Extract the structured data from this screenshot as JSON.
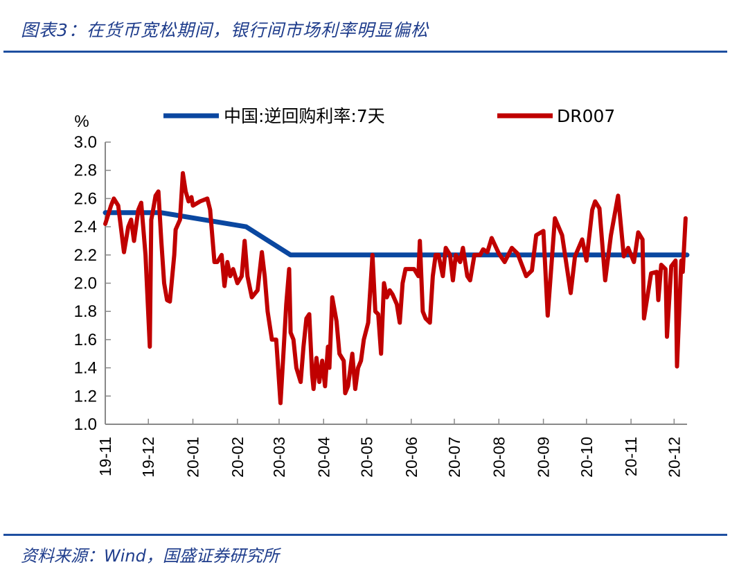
{
  "header": {
    "title": "图表3：在货币宽松期间，银行间市场利率明显偏松"
  },
  "footer": {
    "source": "资料来源：Wind，国盛证券研究所"
  },
  "chart_data": {
    "type": "line",
    "title": "",
    "ylabel": "%",
    "ylim": [
      1.0,
      3.0
    ],
    "yticks": [
      "1.0",
      "1.2",
      "1.4",
      "1.6",
      "1.8",
      "2.0",
      "2.2",
      "2.4",
      "2.6",
      "2.8",
      "3.0"
    ],
    "xlim": [
      "2019-11-01",
      "2020-12-10"
    ],
    "xticks": [
      "19-11",
      "19-12",
      "20-01",
      "20-02",
      "20-03",
      "20-04",
      "20-05",
      "20-06",
      "20-07",
      "20-08",
      "20-09",
      "20-10",
      "20-11",
      "20-12"
    ],
    "grid": false,
    "legend_position": "top",
    "series": [
      {
        "name": "中国:逆回购利率:7天",
        "color": "#0a47a0",
        "points": [
          [
            "2019-11-01",
            2.5
          ],
          [
            "2019-12-10",
            2.5
          ],
          [
            "2020-02-07",
            2.4
          ],
          [
            "2020-03-09",
            2.2
          ],
          [
            "2020-12-10",
            2.2
          ]
        ]
      },
      {
        "name": "DR007",
        "color": "#c00000",
        "points": [
          [
            "2019-11-01",
            2.42
          ],
          [
            "2019-11-05",
            2.55
          ],
          [
            "2019-11-07",
            2.6
          ],
          [
            "2019-11-10",
            2.55
          ],
          [
            "2019-11-14",
            2.22
          ],
          [
            "2019-11-17",
            2.4
          ],
          [
            "2019-11-19",
            2.45
          ],
          [
            "2019-11-21",
            2.3
          ],
          [
            "2019-11-24",
            2.52
          ],
          [
            "2019-11-26",
            2.57
          ],
          [
            "2019-11-29",
            2.2
          ],
          [
            "2019-12-02",
            1.55
          ],
          [
            "2019-12-03",
            2.45
          ],
          [
            "2019-12-04",
            2.5
          ],
          [
            "2019-12-06",
            2.62
          ],
          [
            "2019-12-08",
            2.65
          ],
          [
            "2019-12-10",
            2.3
          ],
          [
            "2019-12-12",
            2.0
          ],
          [
            "2019-12-14",
            1.88
          ],
          [
            "2019-12-16",
            1.87
          ],
          [
            "2019-12-19",
            2.2
          ],
          [
            "2019-12-20",
            2.38
          ],
          [
            "2019-12-23",
            2.45
          ],
          [
            "2019-12-25",
            2.78
          ],
          [
            "2019-12-27",
            2.65
          ],
          [
            "2019-12-29",
            2.58
          ],
          [
            "2019-12-31",
            2.61
          ],
          [
            "2020-01-01",
            2.55
          ],
          [
            "2020-01-06",
            2.58
          ],
          [
            "2020-01-11",
            2.6
          ],
          [
            "2020-01-13",
            2.52
          ],
          [
            "2020-01-16",
            2.15
          ],
          [
            "2020-01-18",
            2.15
          ],
          [
            "2020-01-21",
            2.2
          ],
          [
            "2020-01-23",
            1.98
          ],
          [
            "2020-01-25",
            2.15
          ],
          [
            "2020-01-27",
            2.05
          ],
          [
            "2020-01-29",
            2.1
          ],
          [
            "2020-02-01",
            2.0
          ],
          [
            "2020-02-04",
            2.05
          ],
          [
            "2020-02-06",
            2.3
          ],
          [
            "2020-02-08",
            2.05
          ],
          [
            "2020-02-09",
            2.0
          ],
          [
            "2020-02-11",
            1.9
          ],
          [
            "2020-02-15",
            1.95
          ],
          [
            "2020-02-18",
            2.22
          ],
          [
            "2020-02-20",
            2.05
          ],
          [
            "2020-02-22",
            1.8
          ],
          [
            "2020-02-25",
            1.6
          ],
          [
            "2020-02-28",
            1.6
          ],
          [
            "2020-03-02",
            1.15
          ],
          [
            "2020-03-04",
            1.5
          ],
          [
            "2020-03-06",
            1.85
          ],
          [
            "2020-03-08",
            2.1
          ],
          [
            "2020-03-09",
            1.65
          ],
          [
            "2020-03-11",
            1.6
          ],
          [
            "2020-03-13",
            1.4
          ],
          [
            "2020-03-16",
            1.3
          ],
          [
            "2020-03-18",
            1.55
          ],
          [
            "2020-03-20",
            1.75
          ],
          [
            "2020-03-22",
            1.78
          ],
          [
            "2020-03-24",
            1.35
          ],
          [
            "2020-03-25",
            1.25
          ],
          [
            "2020-03-27",
            1.47
          ],
          [
            "2020-03-29",
            1.3
          ],
          [
            "2020-03-31",
            1.45
          ],
          [
            "2020-04-02",
            1.27
          ],
          [
            "2020-04-04",
            1.55
          ],
          [
            "2020-04-05",
            1.4
          ],
          [
            "2020-04-07",
            1.9
          ],
          [
            "2020-04-10",
            1.73
          ],
          [
            "2020-04-12",
            1.5
          ],
          [
            "2020-04-15",
            1.45
          ],
          [
            "2020-04-16",
            1.22
          ],
          [
            "2020-04-18",
            1.27
          ],
          [
            "2020-04-21",
            1.5
          ],
          [
            "2020-04-23",
            1.25
          ],
          [
            "2020-04-25",
            1.4
          ],
          [
            "2020-04-27",
            1.45
          ],
          [
            "2020-04-29",
            1.6
          ],
          [
            "2020-05-02",
            1.72
          ],
          [
            "2020-05-05",
            2.2
          ],
          [
            "2020-05-07",
            1.8
          ],
          [
            "2020-05-09",
            1.78
          ],
          [
            "2020-05-11",
            1.5
          ],
          [
            "2020-05-13",
            2.0
          ],
          [
            "2020-05-15",
            1.9
          ],
          [
            "2020-05-17",
            1.95
          ],
          [
            "2020-05-19",
            1.92
          ],
          [
            "2020-05-22",
            1.85
          ],
          [
            "2020-05-24",
            1.72
          ],
          [
            "2020-05-26",
            2.0
          ],
          [
            "2020-05-28",
            2.1
          ],
          [
            "2020-05-31",
            2.1
          ],
          [
            "2020-06-03",
            2.1
          ],
          [
            "2020-06-06",
            2.05
          ],
          [
            "2020-06-07",
            2.3
          ],
          [
            "2020-06-09",
            1.8
          ],
          [
            "2020-06-11",
            1.75
          ],
          [
            "2020-06-14",
            1.72
          ],
          [
            "2020-06-16",
            2.05
          ],
          [
            "2020-06-18",
            2.2
          ],
          [
            "2020-06-20",
            2.2
          ],
          [
            "2020-06-23",
            2.05
          ],
          [
            "2020-06-25",
            2.25
          ],
          [
            "2020-06-28",
            2.2
          ],
          [
            "2020-06-30",
            2.02
          ],
          [
            "2020-07-02",
            2.2
          ],
          [
            "2020-07-05",
            2.15
          ],
          [
            "2020-07-07",
            2.25
          ],
          [
            "2020-07-10",
            2.05
          ],
          [
            "2020-07-12",
            2.02
          ],
          [
            "2020-07-15",
            2.2
          ],
          [
            "2020-07-19",
            2.2
          ],
          [
            "2020-07-21",
            2.24
          ],
          [
            "2020-07-24",
            2.22
          ],
          [
            "2020-07-27",
            2.32
          ],
          [
            "2020-08-01",
            2.21
          ],
          [
            "2020-08-05",
            2.15
          ],
          [
            "2020-08-10",
            2.25
          ],
          [
            "2020-08-14",
            2.21
          ],
          [
            "2020-08-20",
            2.05
          ],
          [
            "2020-08-24",
            2.09
          ],
          [
            "2020-08-27",
            2.34
          ],
          [
            "2020-09-01",
            2.37
          ],
          [
            "2020-09-04",
            1.77
          ],
          [
            "2020-09-09",
            2.46
          ],
          [
            "2020-09-14",
            2.34
          ],
          [
            "2020-09-20",
            1.93
          ],
          [
            "2020-09-23",
            2.19
          ],
          [
            "2020-09-28",
            2.31
          ],
          [
            "2020-10-01",
            2.16
          ],
          [
            "2020-10-05",
            2.52
          ],
          [
            "2020-10-07",
            2.58
          ],
          [
            "2020-10-10",
            2.53
          ],
          [
            "2020-10-14",
            2.02
          ],
          [
            "2020-10-18",
            2.34
          ],
          [
            "2020-10-23",
            2.62
          ],
          [
            "2020-10-27",
            2.19
          ],
          [
            "2020-10-30",
            2.25
          ],
          [
            "2020-11-03",
            2.15
          ],
          [
            "2020-11-06",
            2.36
          ],
          [
            "2020-11-09",
            2.31
          ],
          [
            "2020-11-10",
            1.75
          ],
          [
            "2020-11-15",
            2.07
          ],
          [
            "2020-11-19",
            2.08
          ],
          [
            "2020-11-20",
            1.88
          ],
          [
            "2020-11-22",
            2.13
          ],
          [
            "2020-11-25",
            2.1
          ],
          [
            "2020-11-26",
            1.62
          ],
          [
            "2020-11-29",
            2.12
          ],
          [
            "2020-12-02",
            2.16
          ],
          [
            "2020-12-03",
            1.41
          ],
          [
            "2020-12-06",
            2.16
          ],
          [
            "2020-12-07",
            2.08
          ],
          [
            "2020-12-09",
            2.46
          ]
        ]
      }
    ]
  }
}
